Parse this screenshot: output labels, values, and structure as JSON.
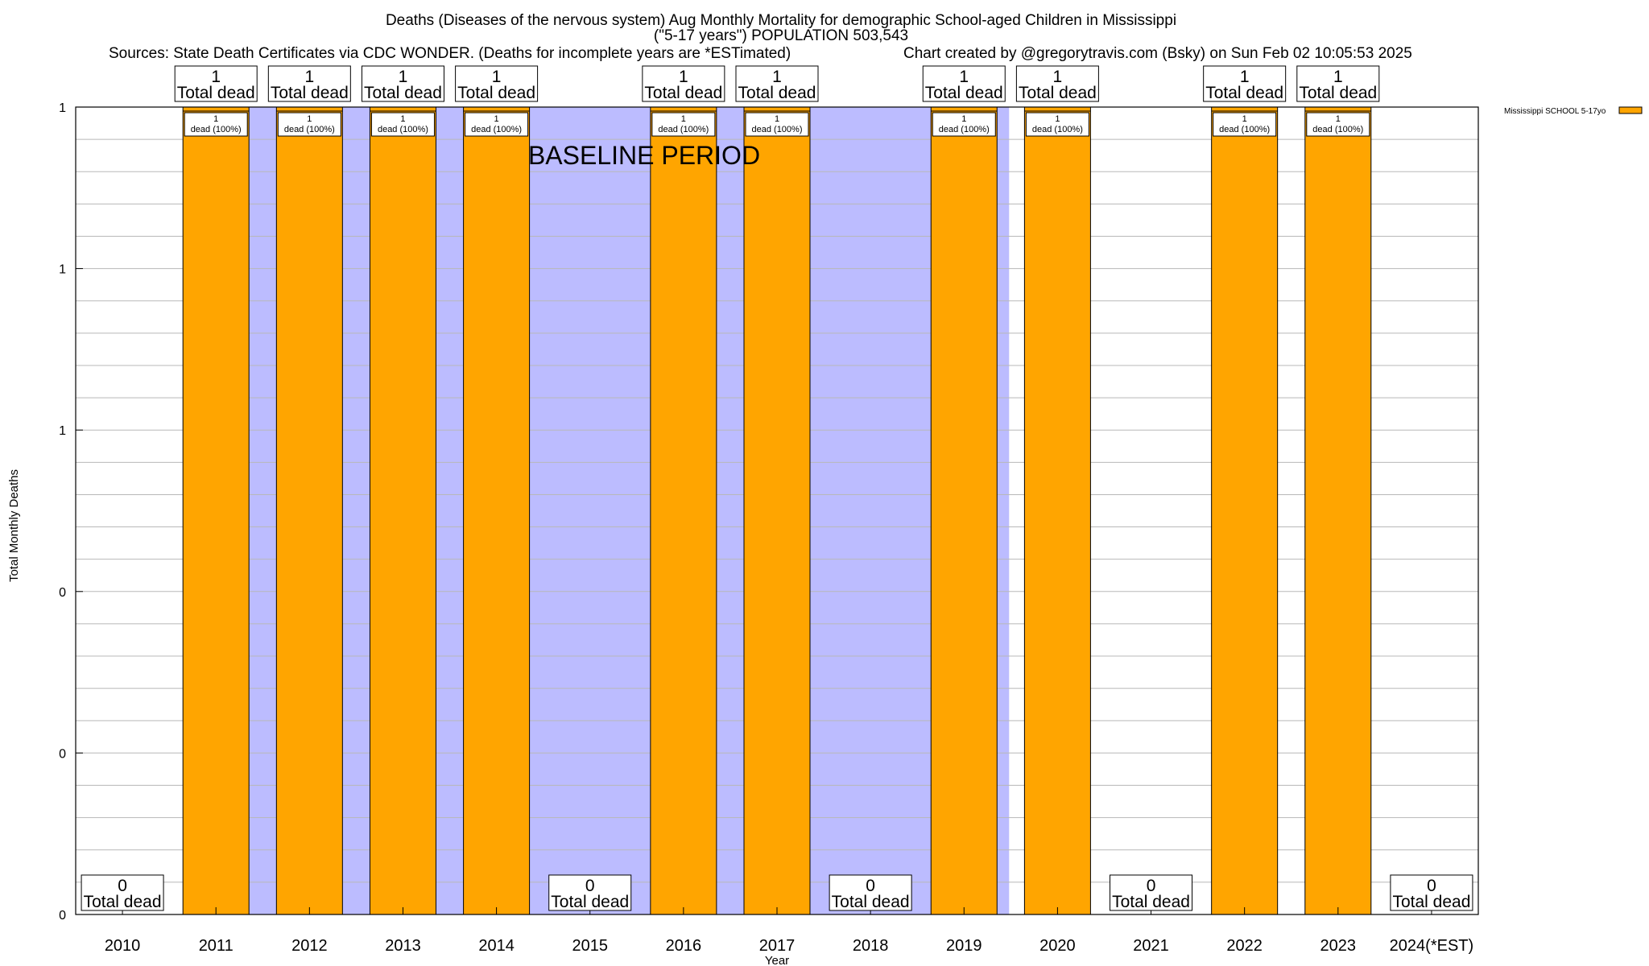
{
  "chart_data": {
    "type": "bar",
    "title_lines": [
      "Deaths (Diseases of the nervous system) Aug Monthly Mortality for demographic School-aged Children in Mississippi",
      "(\"5-17 years\") POPULATION 503,543"
    ],
    "sources": "Sources: State Death Certificates via CDC WONDER. (Deaths for incomplete years are *ESTimated)",
    "credit": "Chart created by @gregorytravis.com (Bsky) on Sun Feb 02 10:05:53 2025",
    "xlabel": "Year",
    "ylabel": "Total Monthly Deaths",
    "ylim": [
      0,
      1
    ],
    "y_tick_labels": [
      "0",
      "0",
      "0",
      "1",
      "1",
      "1"
    ],
    "categories": [
      "2010",
      "2011",
      "2012",
      "2013",
      "2014",
      "2015",
      "2016",
      "2017",
      "2018",
      "2019",
      "2020",
      "2021",
      "2022",
      "2023",
      "2024(*EST)"
    ],
    "series": [
      {
        "name": "Mississippi SCHOOL 5-17yo",
        "color": "#ffa500",
        "values": [
          0,
          1,
          1,
          1,
          1,
          0,
          1,
          1,
          0,
          1,
          1,
          0,
          1,
          1,
          0
        ]
      }
    ],
    "total_labels": [
      "0",
      "1",
      "1",
      "1",
      "1",
      "0",
      "1",
      "1",
      "0",
      "1",
      "1",
      "0",
      "1",
      "1",
      "0"
    ],
    "total_label_suffix": "Total dead",
    "bar_inner_labels": [
      "",
      "1\ndead (100%)",
      "1\ndead (100%)",
      "1\ndead (100%)",
      "1\ndead (100%)",
      "",
      "1\ndead (100%)",
      "1\ndead (100%)",
      "",
      "1\ndead (100%)",
      "1\ndead (100%)",
      "",
      "1\ndead (100%)",
      "1\ndead (100%)",
      ""
    ],
    "baseline_label": "BASELINE PERIOD",
    "baseline_color": "#bcbcff",
    "grid": true,
    "legend_position": "top-right"
  }
}
